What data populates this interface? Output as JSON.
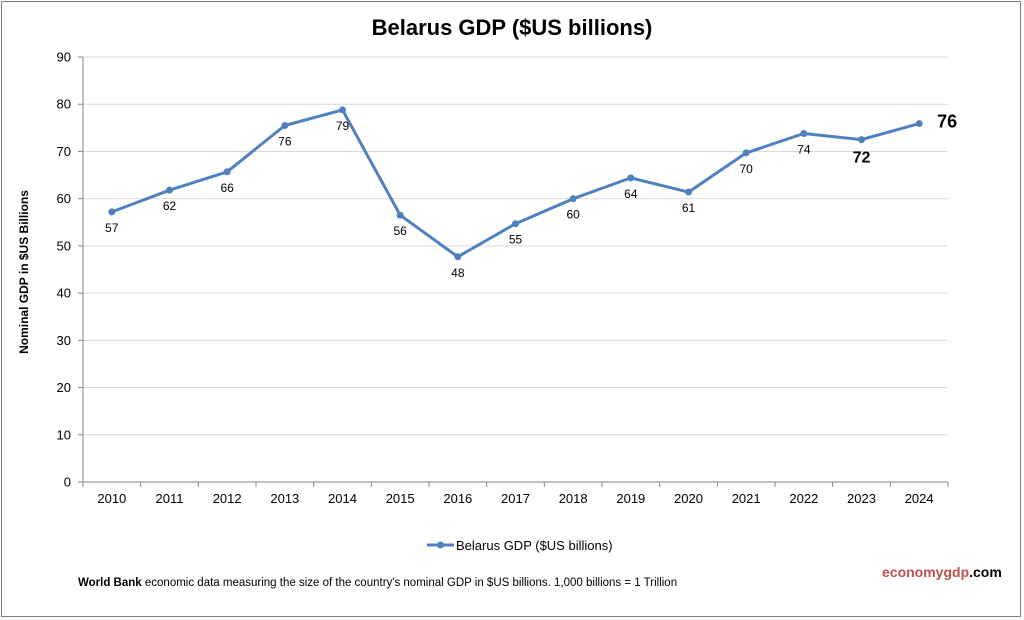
{
  "chart_data": {
    "type": "line",
    "title": "Belarus GDP ($US billions)",
    "xlabel": "",
    "ylabel": "Nominal GDP in $US Billions",
    "categories": [
      "2010",
      "2011",
      "2012",
      "2013",
      "2014",
      "2015",
      "2016",
      "2017",
      "2018",
      "2019",
      "2020",
      "2021",
      "2022",
      "2023",
      "2024"
    ],
    "series": [
      {
        "name": "Belarus GDP ($US billions)",
        "values": [
          57.2,
          61.8,
          65.7,
          75.5,
          78.8,
          56.5,
          47.7,
          54.7,
          60.0,
          64.4,
          61.4,
          69.7,
          73.8,
          72.5,
          75.9
        ],
        "labels": [
          "57",
          "62",
          "66",
          "76",
          "79",
          "56",
          "48",
          "55",
          "60",
          "64",
          "61",
          "70",
          "74",
          "72",
          "76"
        ],
        "color": "#4f81bd"
      }
    ],
    "ylim": [
      0,
      90
    ],
    "yticks": [
      "0",
      "10",
      "20",
      "30",
      "40",
      "50",
      "60",
      "70",
      "80",
      "90"
    ],
    "grid": true,
    "legend_position": "bottom"
  },
  "footnote": {
    "source_bold": "World Bank",
    "text": " economic data  measuring the size of the country's nominal GDP in $US billions. 1,000 billions = 1 Trillion"
  },
  "brand": {
    "part1": "economygdp",
    "part2": ".com",
    "color": "#c0504d"
  }
}
